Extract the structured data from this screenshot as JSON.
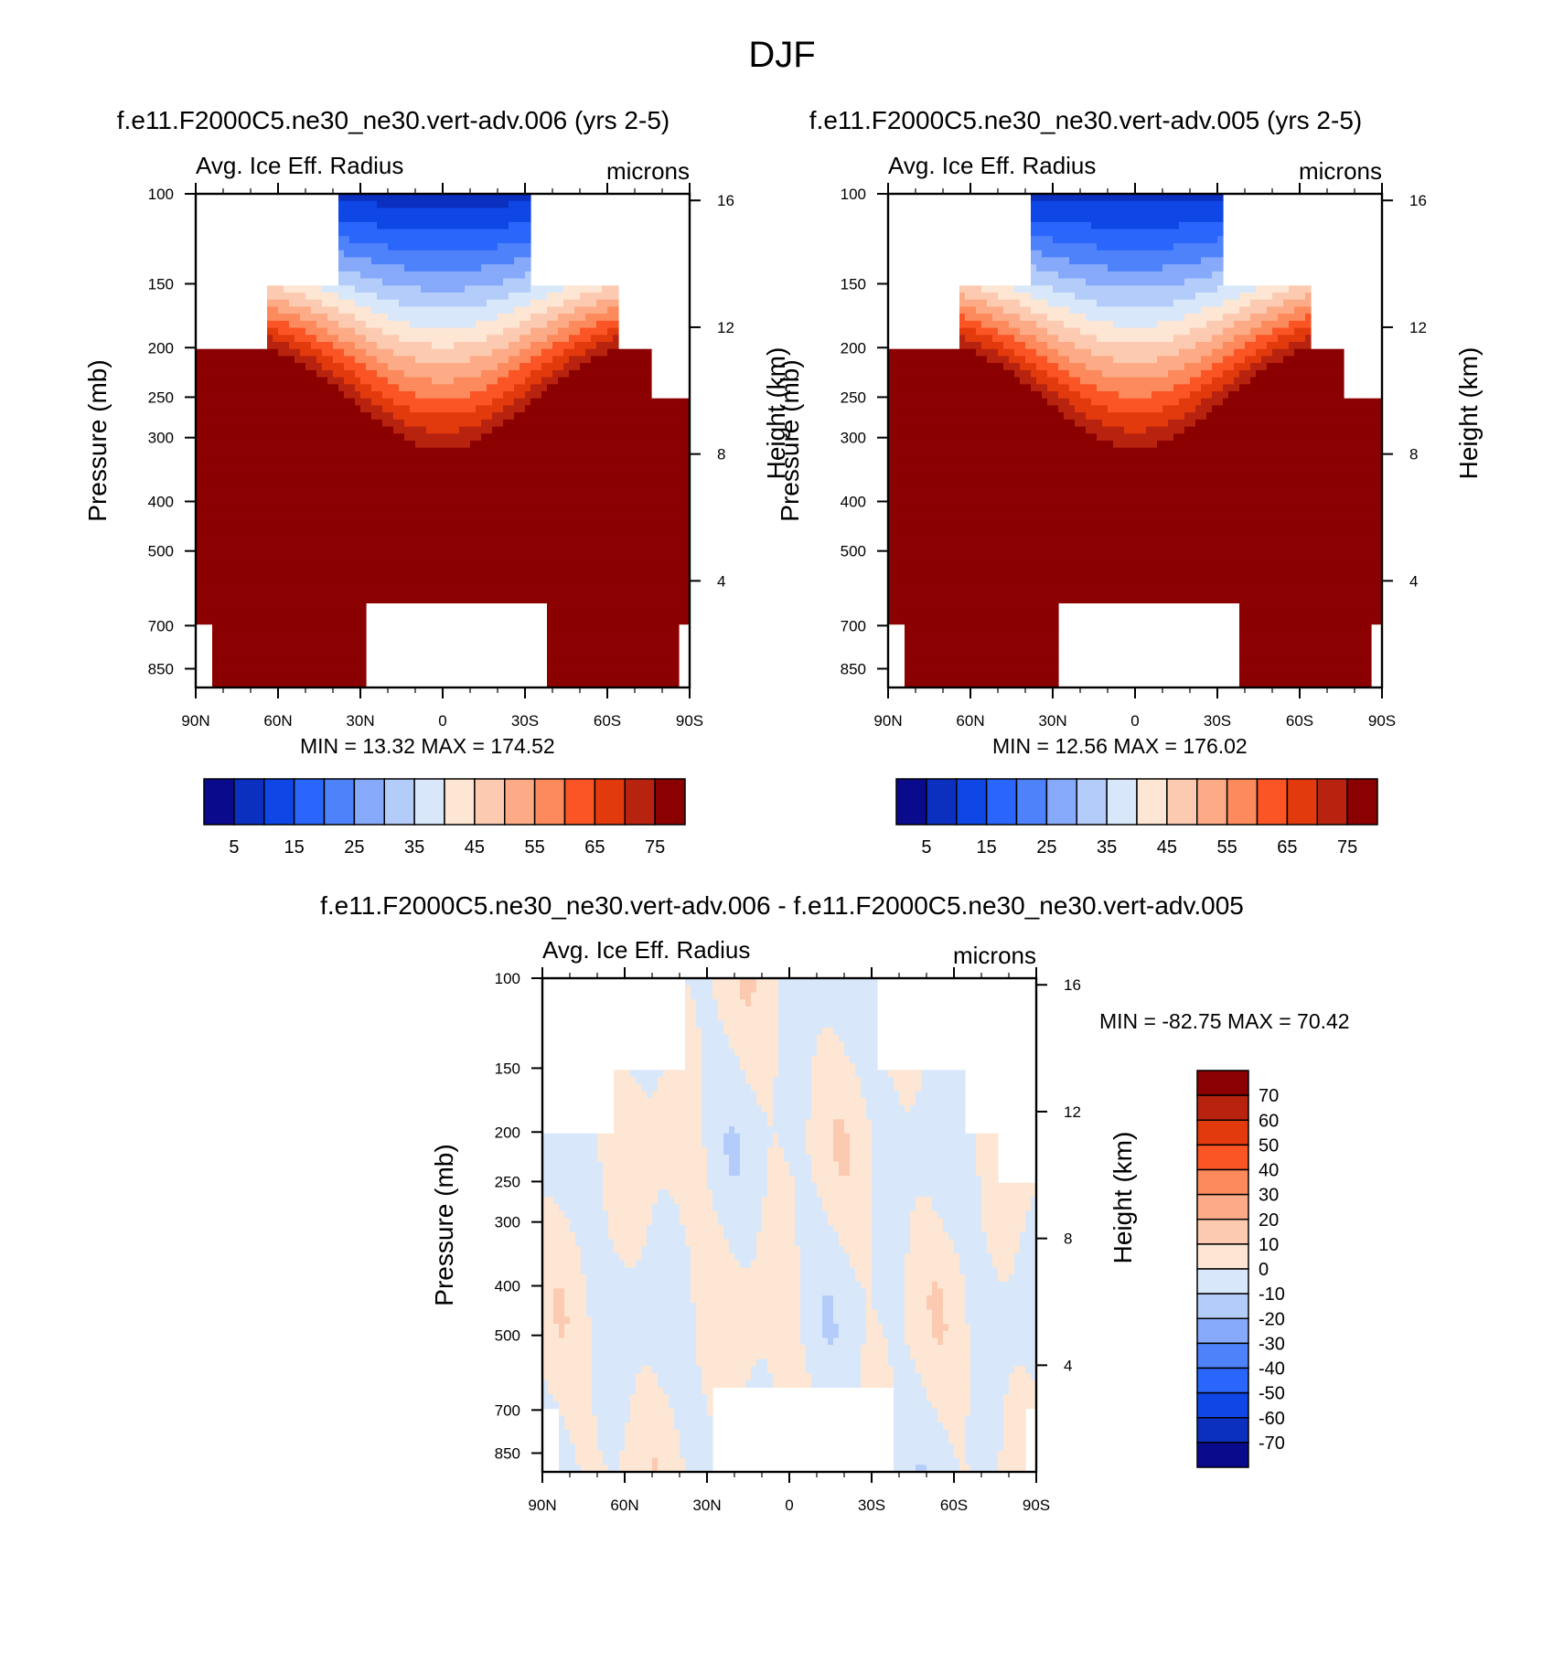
{
  "figure": {
    "title": "DJF"
  },
  "chart_data": [
    {
      "type": "heatmap",
      "title": "f.e11.F2000C5.ne30_ne30.vert-adv.006 (yrs 2-5)",
      "left_string": "Avg. Ice Eff. Radius",
      "right_string": "microns",
      "ylabel": "Pressure (mb)",
      "ylabel_right": "Height (km)",
      "x_ticks": [
        "90N",
        "60N",
        "30N",
        "0",
        "30S",
        "60S",
        "90S"
      ],
      "y_ticks": [
        100,
        150,
        200,
        250,
        300,
        400,
        500,
        700,
        850
      ],
      "y_right_ticks": [
        16,
        12,
        8,
        4
      ],
      "stats": "MIN =  13.32  MAX = 174.52",
      "min": 13.32,
      "max": 174.52,
      "colorbar": {
        "orientation": "horizontal",
        "labels": [
          "5",
          "15",
          "25",
          "35",
          "45",
          "55",
          "65",
          "75"
        ],
        "colors": [
          "#0a0a8c",
          "#0b2fbf",
          "#0f46e6",
          "#2a66fb",
          "#4d82fb",
          "#86aaf9",
          "#b4ccf9",
          "#d8e8fa",
          "#fde6d3",
          "#fccab1",
          "#fcab86",
          "#fc8a5c",
          "#fb5526",
          "#e23a0d",
          "#b7230e",
          "#8b0000"
        ]
      }
    },
    {
      "type": "heatmap",
      "title": "f.e11.F2000C5.ne30_ne30.vert-adv.005 (yrs 2-5)",
      "left_string": "Avg. Ice Eff. Radius",
      "right_string": "microns",
      "ylabel": "Pressure (mb)",
      "ylabel_right": "Height (km)",
      "x_ticks": [
        "90N",
        "60N",
        "30N",
        "0",
        "30S",
        "60S",
        "90S"
      ],
      "y_ticks": [
        100,
        150,
        200,
        250,
        300,
        400,
        500,
        700,
        850
      ],
      "y_right_ticks": [
        16,
        12,
        8,
        4
      ],
      "stats": "MIN =  12.56  MAX = 176.02",
      "min": 12.56,
      "max": 176.02,
      "colorbar": {
        "orientation": "horizontal",
        "labels": [
          "5",
          "15",
          "25",
          "35",
          "45",
          "55",
          "65",
          "75"
        ],
        "colors": [
          "#0a0a8c",
          "#0b2fbf",
          "#0f46e6",
          "#2a66fb",
          "#4d82fb",
          "#86aaf9",
          "#b4ccf9",
          "#d8e8fa",
          "#fde6d3",
          "#fccab1",
          "#fcab86",
          "#fc8a5c",
          "#fb5526",
          "#e23a0d",
          "#b7230e",
          "#8b0000"
        ]
      }
    },
    {
      "type": "heatmap",
      "title": "f.e11.F2000C5.ne30_ne30.vert-adv.006 - f.e11.F2000C5.ne30_ne30.vert-adv.005",
      "left_string": "Avg. Ice Eff. Radius",
      "right_string": "microns",
      "ylabel": "Pressure (mb)",
      "ylabel_right": "Height (km)",
      "x_ticks": [
        "90N",
        "60N",
        "30N",
        "0",
        "30S",
        "60S",
        "90S"
      ],
      "y_ticks": [
        100,
        150,
        200,
        250,
        300,
        400,
        500,
        700,
        850
      ],
      "y_right_ticks": [
        16,
        12,
        8,
        4
      ],
      "stats": "MIN = -82.75  MAX =  70.42",
      "min": -82.75,
      "max": 70.42,
      "colorbar": {
        "orientation": "vertical",
        "labels": [
          "70",
          "60",
          "50",
          "40",
          "30",
          "20",
          "10",
          "0",
          "-10",
          "-20",
          "-30",
          "-40",
          "-50",
          "-60",
          "-70"
        ],
        "colors": [
          "#8b0000",
          "#b7230e",
          "#e23a0d",
          "#fb5526",
          "#fc8a5c",
          "#fcab86",
          "#fccab1",
          "#fde6d3",
          "#d8e8fa",
          "#b4ccf9",
          "#86aaf9",
          "#4d82fb",
          "#2a66fb",
          "#0f46e6",
          "#0b2fbf",
          "#0a0a8c"
        ]
      }
    }
  ]
}
